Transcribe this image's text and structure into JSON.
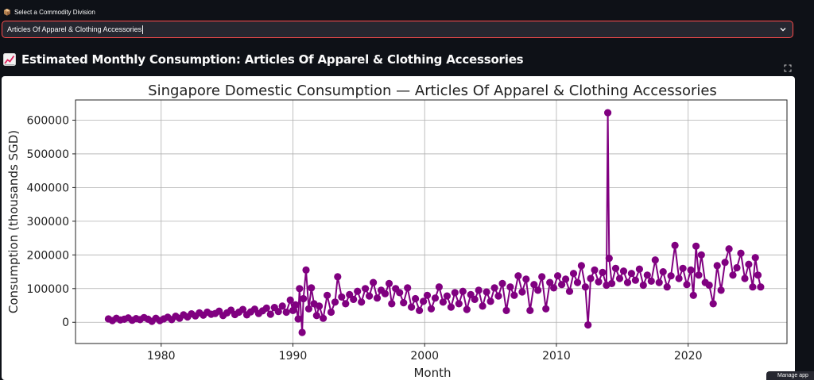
{
  "selector": {
    "label": "Select a Commodity Division",
    "value": "Articles Of Apparel & Clothing Accessories"
  },
  "section": {
    "title": "Estimated Monthly Consumption: Articles Of Apparel & Clothing Accessories"
  },
  "toast": {
    "text": "Manage app"
  },
  "colors": {
    "accent": "#ff4b4b",
    "series": "#800080",
    "background": "#0e1117"
  },
  "chart_data": {
    "type": "line",
    "title": "Singapore Domestic Consumption — Articles Of Apparel & Clothing Accessories",
    "xlabel": "Month",
    "ylabel": "Consumption (thousands SGD)",
    "xlim": [
      1973.5,
      2027.5
    ],
    "ylim": [
      -63000,
      660000
    ],
    "xticks": [
      "1980",
      "1990",
      "2000",
      "2010",
      "2020"
    ],
    "yticks": [
      "0",
      "100000",
      "200000",
      "300000",
      "400000",
      "500000",
      "600000"
    ],
    "grid": true,
    "marker": "circle",
    "series": [
      {
        "values": [
          [
            1976.0,
            10000
          ],
          [
            1976.3,
            5000
          ],
          [
            1976.6,
            12000
          ],
          [
            1976.9,
            7000
          ],
          [
            1977.2,
            9000
          ],
          [
            1977.5,
            13000
          ],
          [
            1977.8,
            6000
          ],
          [
            1978.1,
            11000
          ],
          [
            1978.4,
            8000
          ],
          [
            1978.7,
            14000
          ],
          [
            1979.0,
            9000
          ],
          [
            1979.3,
            3000
          ],
          [
            1979.6,
            12000
          ],
          [
            1979.9,
            5000
          ],
          [
            1980.2,
            10000
          ],
          [
            1980.5,
            15000
          ],
          [
            1980.8,
            8000
          ],
          [
            1981.1,
            18000
          ],
          [
            1981.4,
            12000
          ],
          [
            1981.7,
            22000
          ],
          [
            1982.0,
            16000
          ],
          [
            1982.3,
            25000
          ],
          [
            1982.6,
            19000
          ],
          [
            1982.9,
            28000
          ],
          [
            1983.2,
            21000
          ],
          [
            1983.5,
            30000
          ],
          [
            1983.8,
            24000
          ],
          [
            1984.1,
            26000
          ],
          [
            1984.4,
            33000
          ],
          [
            1984.7,
            20000
          ],
          [
            1985.0,
            28000
          ],
          [
            1985.3,
            36000
          ],
          [
            1985.6,
            23000
          ],
          [
            1985.9,
            30000
          ],
          [
            1986.2,
            38000
          ],
          [
            1986.5,
            22000
          ],
          [
            1986.8,
            31000
          ],
          [
            1987.1,
            39000
          ],
          [
            1987.4,
            26000
          ],
          [
            1987.7,
            34000
          ],
          [
            1988.0,
            42000
          ],
          [
            1988.3,
            24000
          ],
          [
            1988.6,
            44000
          ],
          [
            1988.9,
            32000
          ],
          [
            1989.2,
            48000
          ],
          [
            1989.5,
            30000
          ],
          [
            1989.8,
            66000
          ],
          [
            1990.0,
            35000
          ],
          [
            1990.2,
            52000
          ],
          [
            1990.4,
            10000
          ],
          [
            1990.5,
            100000
          ],
          [
            1990.7,
            -30000
          ],
          [
            1990.8,
            70000
          ],
          [
            1991.0,
            155000
          ],
          [
            1991.2,
            40000
          ],
          [
            1991.4,
            102000
          ],
          [
            1991.6,
            55000
          ],
          [
            1991.8,
            20000
          ],
          [
            1992.0,
            48000
          ],
          [
            1992.3,
            12000
          ],
          [
            1992.6,
            80000
          ],
          [
            1992.9,
            30000
          ],
          [
            1993.2,
            60000
          ],
          [
            1993.4,
            135000
          ],
          [
            1993.7,
            75000
          ],
          [
            1994.0,
            55000
          ],
          [
            1994.3,
            82000
          ],
          [
            1994.6,
            68000
          ],
          [
            1994.9,
            92000
          ],
          [
            1995.2,
            60000
          ],
          [
            1995.5,
            100000
          ],
          [
            1995.8,
            78000
          ],
          [
            1996.1,
            118000
          ],
          [
            1996.4,
            72000
          ],
          [
            1996.7,
            95000
          ],
          [
            1997.0,
            85000
          ],
          [
            1997.3,
            115000
          ],
          [
            1997.5,
            55000
          ],
          [
            1997.8,
            100000
          ],
          [
            1998.1,
            88000
          ],
          [
            1998.4,
            58000
          ],
          [
            1998.7,
            102000
          ],
          [
            1999.0,
            45000
          ],
          [
            1999.3,
            70000
          ],
          [
            1999.6,
            35000
          ],
          [
            1999.9,
            62000
          ],
          [
            2000.2,
            80000
          ],
          [
            2000.5,
            40000
          ],
          [
            2000.8,
            72000
          ],
          [
            2001.1,
            105000
          ],
          [
            2001.4,
            60000
          ],
          [
            2001.7,
            78000
          ],
          [
            2002.0,
            45000
          ],
          [
            2002.3,
            88000
          ],
          [
            2002.6,
            55000
          ],
          [
            2002.9,
            92000
          ],
          [
            2003.2,
            38000
          ],
          [
            2003.5,
            82000
          ],
          [
            2003.8,
            68000
          ],
          [
            2004.1,
            95000
          ],
          [
            2004.4,
            48000
          ],
          [
            2004.7,
            90000
          ],
          [
            2005.0,
            62000
          ],
          [
            2005.3,
            102000
          ],
          [
            2005.6,
            78000
          ],
          [
            2005.9,
            115000
          ],
          [
            2006.2,
            35000
          ],
          [
            2006.5,
            105000
          ],
          [
            2006.8,
            80000
          ],
          [
            2007.1,
            138000
          ],
          [
            2007.4,
            90000
          ],
          [
            2007.7,
            128000
          ],
          [
            2008.0,
            35000
          ],
          [
            2008.3,
            112000
          ],
          [
            2008.6,
            95000
          ],
          [
            2008.9,
            135000
          ],
          [
            2009.2,
            40000
          ],
          [
            2009.5,
            118000
          ],
          [
            2009.8,
            102000
          ],
          [
            2010.1,
            138000
          ],
          [
            2010.4,
            112000
          ],
          [
            2010.7,
            128000
          ],
          [
            2011.0,
            92000
          ],
          [
            2011.3,
            145000
          ],
          [
            2011.6,
            118000
          ],
          [
            2011.9,
            168000
          ],
          [
            2012.2,
            105000
          ],
          [
            2012.4,
            -8000
          ],
          [
            2012.6,
            130000
          ],
          [
            2012.9,
            155000
          ],
          [
            2013.2,
            120000
          ],
          [
            2013.5,
            148000
          ],
          [
            2013.8,
            110000
          ],
          [
            2013.9,
            622000
          ],
          [
            2014.0,
            190000
          ],
          [
            2014.2,
            115000
          ],
          [
            2014.5,
            160000
          ],
          [
            2014.8,
            130000
          ],
          [
            2015.1,
            152000
          ],
          [
            2015.4,
            118000
          ],
          [
            2015.7,
            145000
          ],
          [
            2016.0,
            125000
          ],
          [
            2016.3,
            158000
          ],
          [
            2016.6,
            110000
          ],
          [
            2016.9,
            140000
          ],
          [
            2017.2,
            122000
          ],
          [
            2017.5,
            185000
          ],
          [
            2017.8,
            118000
          ],
          [
            2018.1,
            150000
          ],
          [
            2018.4,
            105000
          ],
          [
            2018.7,
            138000
          ],
          [
            2019.0,
            228000
          ],
          [
            2019.3,
            130000
          ],
          [
            2019.6,
            160000
          ],
          [
            2019.9,
            112000
          ],
          [
            2020.2,
            155000
          ],
          [
            2020.4,
            80000
          ],
          [
            2020.6,
            226000
          ],
          [
            2020.8,
            140000
          ],
          [
            2021.0,
            200000
          ],
          [
            2021.3,
            118000
          ],
          [
            2021.6,
            110000
          ],
          [
            2021.9,
            55000
          ],
          [
            2022.2,
            168000
          ],
          [
            2022.5,
            95000
          ],
          [
            2022.8,
            178000
          ],
          [
            2023.1,
            218000
          ],
          [
            2023.4,
            140000
          ],
          [
            2023.7,
            162000
          ],
          [
            2024.0,
            205000
          ],
          [
            2024.3,
            130000
          ],
          [
            2024.6,
            172000
          ],
          [
            2024.9,
            105000
          ],
          [
            2025.1,
            192000
          ],
          [
            2025.3,
            140000
          ],
          [
            2025.5,
            105000
          ]
        ]
      }
    ]
  }
}
